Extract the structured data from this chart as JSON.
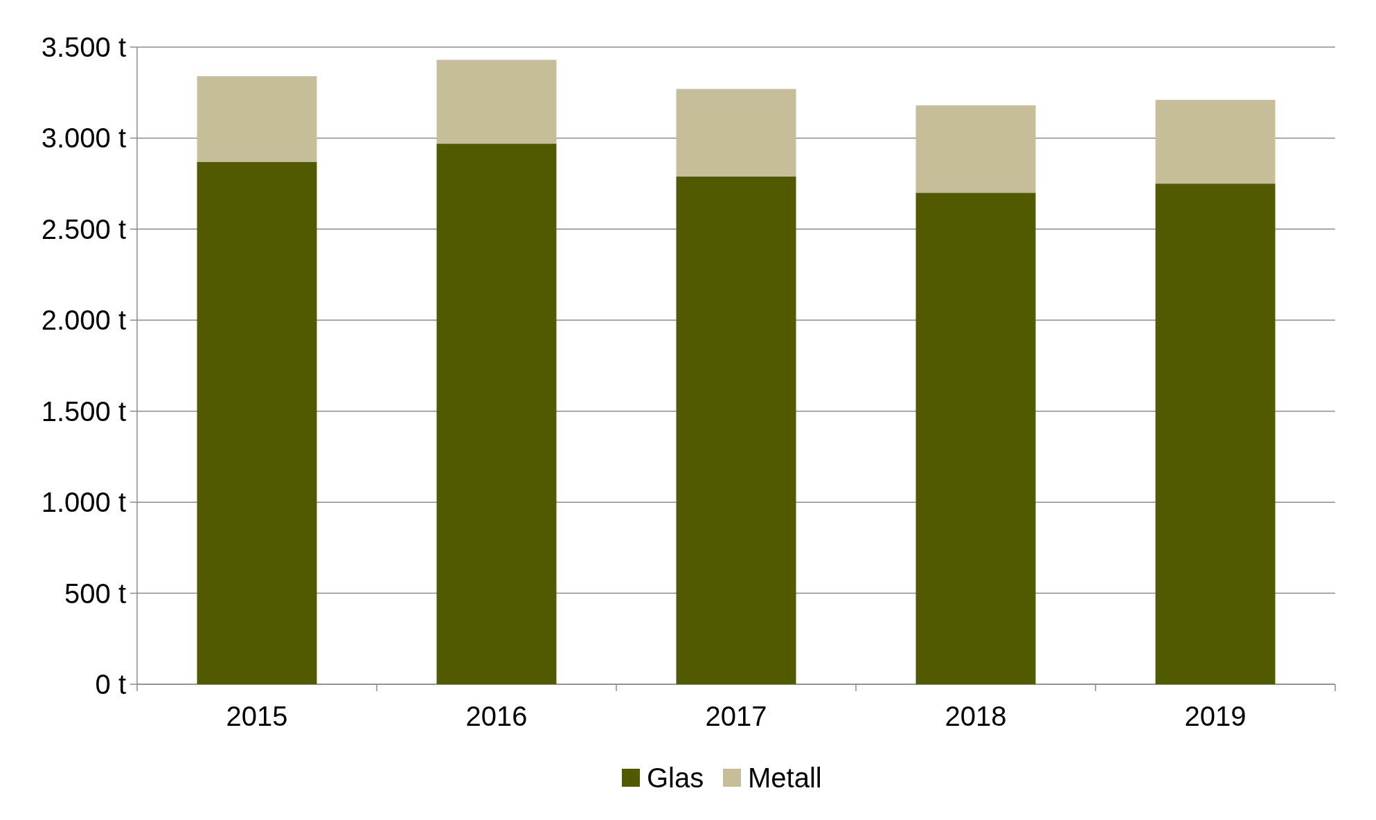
{
  "chart_data": {
    "type": "bar",
    "stacked": true,
    "categories": [
      "2015",
      "2016",
      "2017",
      "2018",
      "2019"
    ],
    "series": [
      {
        "name": "Glas",
        "color": "#525a00",
        "values": [
          2870,
          2970,
          2790,
          2700,
          2750
        ]
      },
      {
        "name": "Metall",
        "color": "#c6be98",
        "values": [
          470,
          460,
          480,
          480,
          460
        ]
      }
    ],
    "ylim": [
      0,
      3500
    ],
    "yticks": [
      {
        "value": 0,
        "label": "0 t"
      },
      {
        "value": 500,
        "label": "500 t"
      },
      {
        "value": 1000,
        "label": "1.000 t"
      },
      {
        "value": 1500,
        "label": "1.500 t"
      },
      {
        "value": 2000,
        "label": "2.000 t"
      },
      {
        "value": 2500,
        "label": "2.500 t"
      },
      {
        "value": 3000,
        "label": "3.000 t"
      },
      {
        "value": 3500,
        "label": "3.500 t"
      }
    ],
    "grid": "y",
    "legend": "bottom"
  }
}
